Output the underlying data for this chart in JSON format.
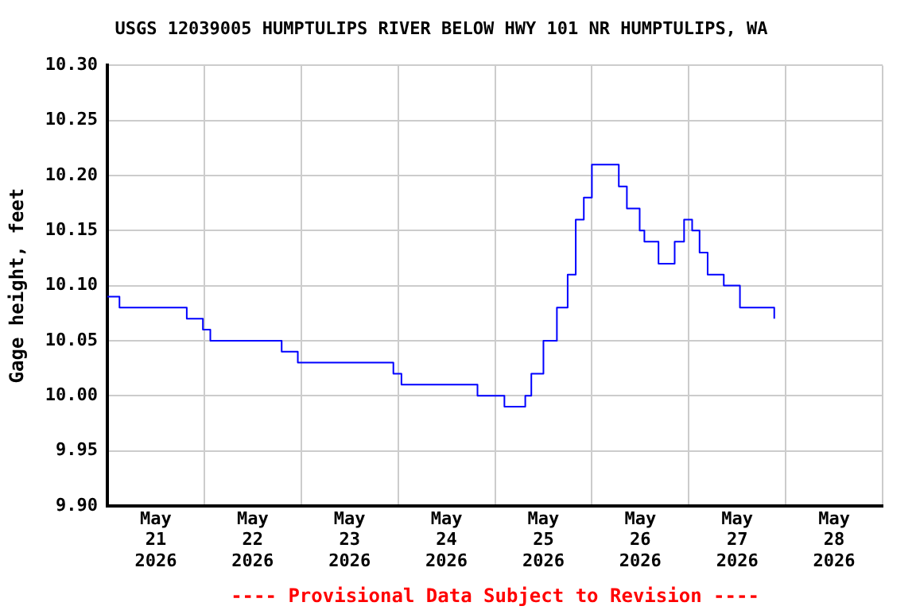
{
  "chart_data": {
    "type": "step",
    "title": "USGS 12039005 HUMPTULIPS RIVER BELOW HWY 101 NR HUMPTULIPS, WA",
    "ylabel": "Gage height, feet",
    "annotations": [
      "---- Provisional Data Subject to Revision ----"
    ],
    "x": [
      "2026-05-21T00:00",
      "2026-05-21T03:00",
      "2026-05-21T09:50",
      "2026-05-21T18:30",
      "2026-05-21T19:40",
      "2026-05-21T23:40",
      "2026-05-22T01:30",
      "2026-05-22T07:30",
      "2026-05-22T17:20",
      "2026-05-22T19:10",
      "2026-05-22T23:10",
      "2026-05-23T20:50",
      "2026-05-23T22:50",
      "2026-05-24T00:50",
      "2026-05-24T06:40",
      "2026-05-24T19:40",
      "2026-05-25T02:20",
      "2026-05-25T05:00",
      "2026-05-25T07:30",
      "2026-05-25T09:00",
      "2026-05-25T12:00",
      "2026-05-25T15:20",
      "2026-05-25T18:00",
      "2026-05-25T20:00",
      "2026-05-25T22:00",
      "2026-05-26T00:00",
      "2026-05-26T03:00",
      "2026-05-26T06:40",
      "2026-05-26T08:40",
      "2026-05-26T11:50",
      "2026-05-26T13:00",
      "2026-05-26T16:30",
      "2026-05-26T20:30",
      "2026-05-26T22:50",
      "2026-05-27T00:50",
      "2026-05-27T02:40",
      "2026-05-27T04:40",
      "2026-05-27T08:40",
      "2026-05-27T12:40",
      "2026-05-27T18:00",
      "2026-05-27T21:10"
    ],
    "series": [
      {
        "color": "#0000ff",
        "values": [
          10.09,
          10.08,
          10.08,
          10.08,
          10.07,
          10.06,
          10.05,
          10.05,
          10.05,
          10.04,
          10.03,
          10.03,
          10.02,
          10.01,
          10.01,
          10.0,
          9.99,
          9.99,
          10.0,
          10.02,
          10.05,
          10.08,
          10.11,
          10.16,
          10.18,
          10.21,
          10.21,
          10.19,
          10.17,
          10.15,
          10.14,
          10.12,
          10.14,
          10.16,
          10.15,
          10.13,
          10.11,
          10.1,
          10.08,
          10.08,
          10.07
        ]
      }
    ],
    "xlim": [
      "2026-05-21T00:00",
      "2026-05-29T00:00"
    ],
    "xticks": [
      {
        "value": "2026-05-21T00:00",
        "label": null
      },
      {
        "value": "2026-05-21T12:00",
        "label": "May\n21\n2026"
      },
      {
        "value": "2026-05-22T00:00",
        "label": null
      },
      {
        "value": "2026-05-22T12:00",
        "label": "May\n22\n2026"
      },
      {
        "value": "2026-05-23T00:00",
        "label": null
      },
      {
        "value": "2026-05-23T12:00",
        "label": "May\n23\n2026"
      },
      {
        "value": "2026-05-24T00:00",
        "label": null
      },
      {
        "value": "2026-05-24T12:00",
        "label": "May\n24\n2026"
      },
      {
        "value": "2026-05-25T00:00",
        "label": null
      },
      {
        "value": "2026-05-25T12:00",
        "label": "May\n25\n2026"
      },
      {
        "value": "2026-05-26T00:00",
        "label": null
      },
      {
        "value": "2026-05-26T12:00",
        "label": "May\n26\n2026"
      },
      {
        "value": "2026-05-27T00:00",
        "label": null
      },
      {
        "value": "2026-05-27T12:00",
        "label": "May\n27\n2026"
      },
      {
        "value": "2026-05-28T00:00",
        "label": null
      },
      {
        "value": "2026-05-28T12:00",
        "label": "May\n28\n2026"
      },
      {
        "value": "2026-05-29T00:00",
        "label": null
      }
    ],
    "ylim": [
      9.9,
      10.3
    ],
    "yticks": [
      {
        "value": 9.9,
        "label": "9.90"
      },
      {
        "value": 9.95,
        "label": "9.95"
      },
      {
        "value": 10.0,
        "label": "10.00"
      },
      {
        "value": 10.05,
        "label": "10.05"
      },
      {
        "value": 10.1,
        "label": "10.10"
      },
      {
        "value": 10.15,
        "label": "10.15"
      },
      {
        "value": 10.2,
        "label": "10.20"
      },
      {
        "value": 10.25,
        "label": "10.25"
      },
      {
        "value": 10.3,
        "label": "10.30"
      }
    ],
    "grid": true,
    "legend": false,
    "marker": "none",
    "line_style": "solid"
  }
}
